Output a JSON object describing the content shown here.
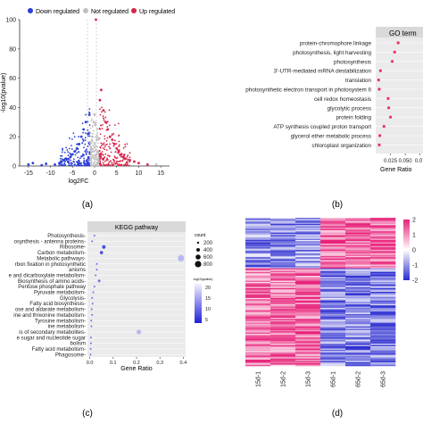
{
  "panel_a": {
    "legend": {
      "down": "Down regulated",
      "not": "Not regulated",
      "up": "Up regulated",
      "colors": {
        "down": "#2b3fd6",
        "not": "#bfbfbf",
        "up": "#d6254a"
      }
    },
    "ylabel": "-log10(pvalue)",
    "xlabel": "log2FC",
    "yticks": [
      "0",
      "20",
      "40",
      "60",
      "80",
      "100"
    ],
    "xticks": [
      "-15",
      "-10",
      "-5",
      "0",
      "5",
      "10",
      "15"
    ],
    "caption": "(a)"
  },
  "panel_b": {
    "title": "GO term",
    "xlabel": "Gene Ratio",
    "xticks": [
      "0.025",
      "0.050",
      "0.07"
    ],
    "caption": "(b)",
    "dot_color": "#e8335c"
  },
  "panel_c": {
    "title": "KEGG pathway",
    "xlabel": "Gene Ratio",
    "xticks": [
      "0.0",
      "0.1",
      "0.2",
      "0.3",
      "0.4"
    ],
    "size_legend": {
      "title": "count",
      "values": [
        "200",
        "400",
        "600",
        "800"
      ]
    },
    "color_legend": {
      "title": "-log10(qvalue)",
      "values": [
        "20",
        "15",
        "10",
        "5"
      ]
    },
    "caption": "(c)"
  },
  "panel_d": {
    "scale_ticks": [
      "2",
      "1",
      "0",
      "-1",
      "-2"
    ],
    "samples": [
      "15d-1",
      "15d-2",
      "15d-3",
      "65d-1",
      "65d-2",
      "65d-3"
    ],
    "caption": "(d)"
  },
  "chart_data": [
    {
      "type": "scatter",
      "title": "",
      "xlabel": "log2FC",
      "ylabel": "-log10(pvalue)",
      "xlim": [
        -17,
        17
      ],
      "ylim": [
        0,
        100
      ],
      "series": [
        {
          "name": "Down regulated",
          "x": [
            -15,
            -14,
            -12,
            -11,
            -9,
            -8,
            -7.5,
            -7,
            -6.5,
            -6,
            -5.5,
            -5,
            -4.5,
            -4,
            -3.5,
            -3,
            -2.5,
            -2,
            -1.5,
            -1.2
          ],
          "y": [
            1,
            2,
            0.5,
            1.5,
            1,
            2,
            3,
            4,
            5,
            3,
            6,
            8,
            10,
            12,
            15,
            20,
            25,
            30,
            22,
            35
          ]
        },
        {
          "name": "Not regulated",
          "x": [
            -1,
            -0.8,
            -0.5,
            -0.2,
            0,
            0.2,
            0.5,
            0.8,
            1,
            14
          ],
          "y": [
            8,
            12,
            20,
            30,
            35,
            28,
            18,
            10,
            6,
            1
          ]
        },
        {
          "name": "Up regulated",
          "x": [
            1.2,
            1.5,
            2,
            2.5,
            3,
            3.5,
            4,
            4.5,
            5,
            5.5,
            6,
            6.5,
            7,
            8,
            9,
            10,
            12
          ],
          "y": [
            45,
            52,
            38,
            30,
            25,
            20,
            18,
            15,
            12,
            10,
            8,
            6,
            5,
            4,
            3,
            2,
            1
          ]
        }
      ]
    },
    {
      "type": "scatter",
      "title": "GO term",
      "xlabel": "Gene Ratio",
      "categories": [
        "protein-chromophore linkage",
        "photosynthesis, light harvesting",
        "photosynthesis",
        "3'-UTR-mediated mRNA destabilization",
        "translation",
        "photosynthetic electron transport in photosystem II",
        "cell redox homeostasis",
        "glycolytic process",
        "protein folding",
        "ATP synthesis coupled proton transport",
        "glycerol ether metabolic process",
        "chloroplast organization"
      ],
      "values": [
        0.038,
        0.032,
        0.028,
        0.008,
        0.005,
        0.006,
        0.021,
        0.022,
        0.025,
        0.014,
        0.007,
        0.006
      ]
    },
    {
      "type": "scatter",
      "title": "KEGG pathway",
      "xlabel": "Gene Ratio",
      "categories": [
        "Photosynthesis-",
        "osynthesis - antenna proteins-",
        "Ribosome-",
        "Carbon metabolism-",
        "Metabolic pathways-",
        "rbon fixation in photosynthetic",
        "anisms",
        "e and dicarboxylate metabolism-",
        "Biosynthesis of amino acids-",
        "Pentose phosphate pathway",
        "Pyruvate metabolism-",
        "Glycolysis-",
        "Fatty acid biosynthesis-",
        "ose and aldarate metabolism-",
        "ine and threonine metabolism-",
        "Tyrosine metabolism-",
        "ine metabolism-",
        "is of secondary metabolites-",
        "e sugar and nucleotide sugar",
        "bolism",
        "Fatty acid metabolism-",
        "Phagosome-"
      ],
      "values": [
        0.02,
        0.01,
        0.06,
        0.05,
        0.39,
        0.03,
        0.03,
        0.025,
        0.04,
        0.02,
        0.015,
        0.01,
        0.012,
        0.008,
        0.01,
        0.006,
        0.007,
        0.21,
        0.005,
        0.005,
        0.004,
        0.003
      ]
    }
  ]
}
